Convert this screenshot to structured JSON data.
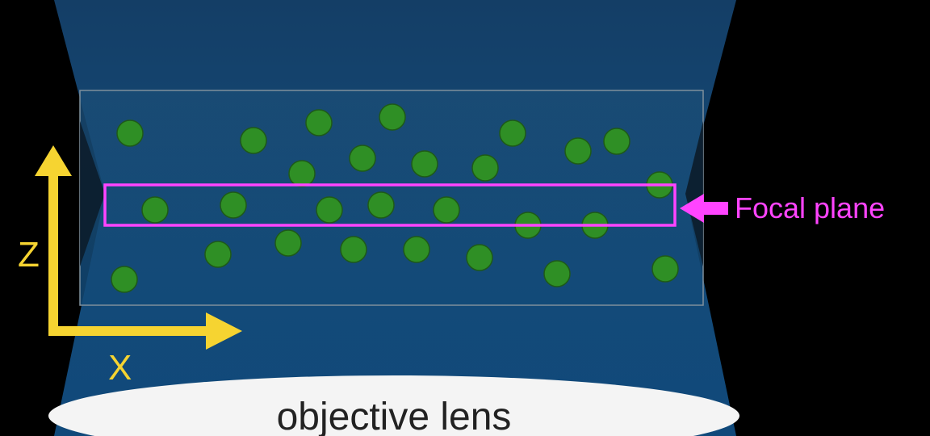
{
  "labels": {
    "focal_plane": "Focal plane",
    "z_axis": "Z",
    "x_axis": "X",
    "lens": "objective lens"
  },
  "colors": {
    "background": "#000000",
    "cone_top": "#143e66",
    "cone_bottom": "#10497a",
    "sample_box": "#7f8f9c",
    "bead_fill": "#2f8f25",
    "bead_stroke": "#1e5a18",
    "focal_plane": "#ff44ff",
    "axis": "#f6d431",
    "lens": "#f4f4f4",
    "lens_text": "#222222"
  },
  "icons": [
    "focal-plane-arrow-icon",
    "z-axis-arrow-icon",
    "x-axis-arrow-icon"
  ]
}
